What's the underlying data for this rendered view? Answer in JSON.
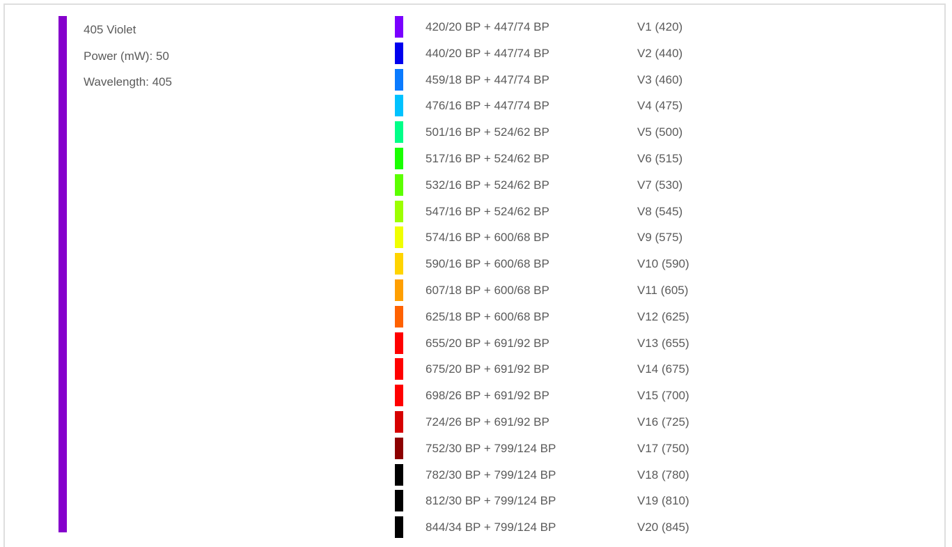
{
  "laser": {
    "name": "405 Violet",
    "power": "Power (mW): 50",
    "wavelength": "Wavelength: 405",
    "color": "#8500cc"
  },
  "channels": [
    {
      "filter": "420/20 BP + 447/74 BP",
      "detector": "V1 (420)",
      "color": "#7a00ff"
    },
    {
      "filter": "440/20 BP + 447/74 BP",
      "detector": "V2 (440)",
      "color": "#0000ee"
    },
    {
      "filter": "459/18 BP + 447/74 BP",
      "detector": "V3 (460)",
      "color": "#0a7bff"
    },
    {
      "filter": "476/16 BP + 447/74 BP",
      "detector": "V4 (475)",
      "color": "#00c2ff"
    },
    {
      "filter": "501/16 BP + 524/62 BP",
      "detector": "V5 (500)",
      "color": "#00ff88"
    },
    {
      "filter": "517/16 BP + 524/62 BP",
      "detector": "V6 (515)",
      "color": "#1aff00"
    },
    {
      "filter": "532/16 BP + 524/62 BP",
      "detector": "V7 (530)",
      "color": "#5cff00"
    },
    {
      "filter": "547/16 BP + 524/62 BP",
      "detector": "V8 (545)",
      "color": "#9dff00"
    },
    {
      "filter": "574/16 BP + 600/68 BP",
      "detector": "V9 (575)",
      "color": "#f0ff00"
    },
    {
      "filter": "590/16 BP + 600/68 BP",
      "detector": "V10 (590)",
      "color": "#ffd400"
    },
    {
      "filter": "607/18 BP + 600/68 BP",
      "detector": "V11 (605)",
      "color": "#ff9f00"
    },
    {
      "filter": "625/18 BP + 600/68 BP",
      "detector": "V12 (625)",
      "color": "#ff6200"
    },
    {
      "filter": "655/20 BP + 691/92 BP",
      "detector": "V13 (655)",
      "color": "#ff0000"
    },
    {
      "filter": "675/20 BP + 691/92 BP",
      "detector": "V14 (675)",
      "color": "#ff0000"
    },
    {
      "filter": "698/26 BP + 691/92 BP",
      "detector": "V15 (700)",
      "color": "#ff0000"
    },
    {
      "filter": "724/26 BP + 691/92 BP",
      "detector": "V16 (725)",
      "color": "#d60000"
    },
    {
      "filter": "752/30 BP + 799/124 BP",
      "detector": "V17 (750)",
      "color": "#8c0000"
    },
    {
      "filter": "782/30 BP + 799/124 BP",
      "detector": "V18 (780)",
      "color": "#000000"
    },
    {
      "filter": "812/30 BP + 799/124 BP",
      "detector": "V19 (810)",
      "color": "#000000"
    },
    {
      "filter": "844/34 BP + 799/124 BP",
      "detector": "V20 (845)",
      "color": "#000000"
    }
  ]
}
